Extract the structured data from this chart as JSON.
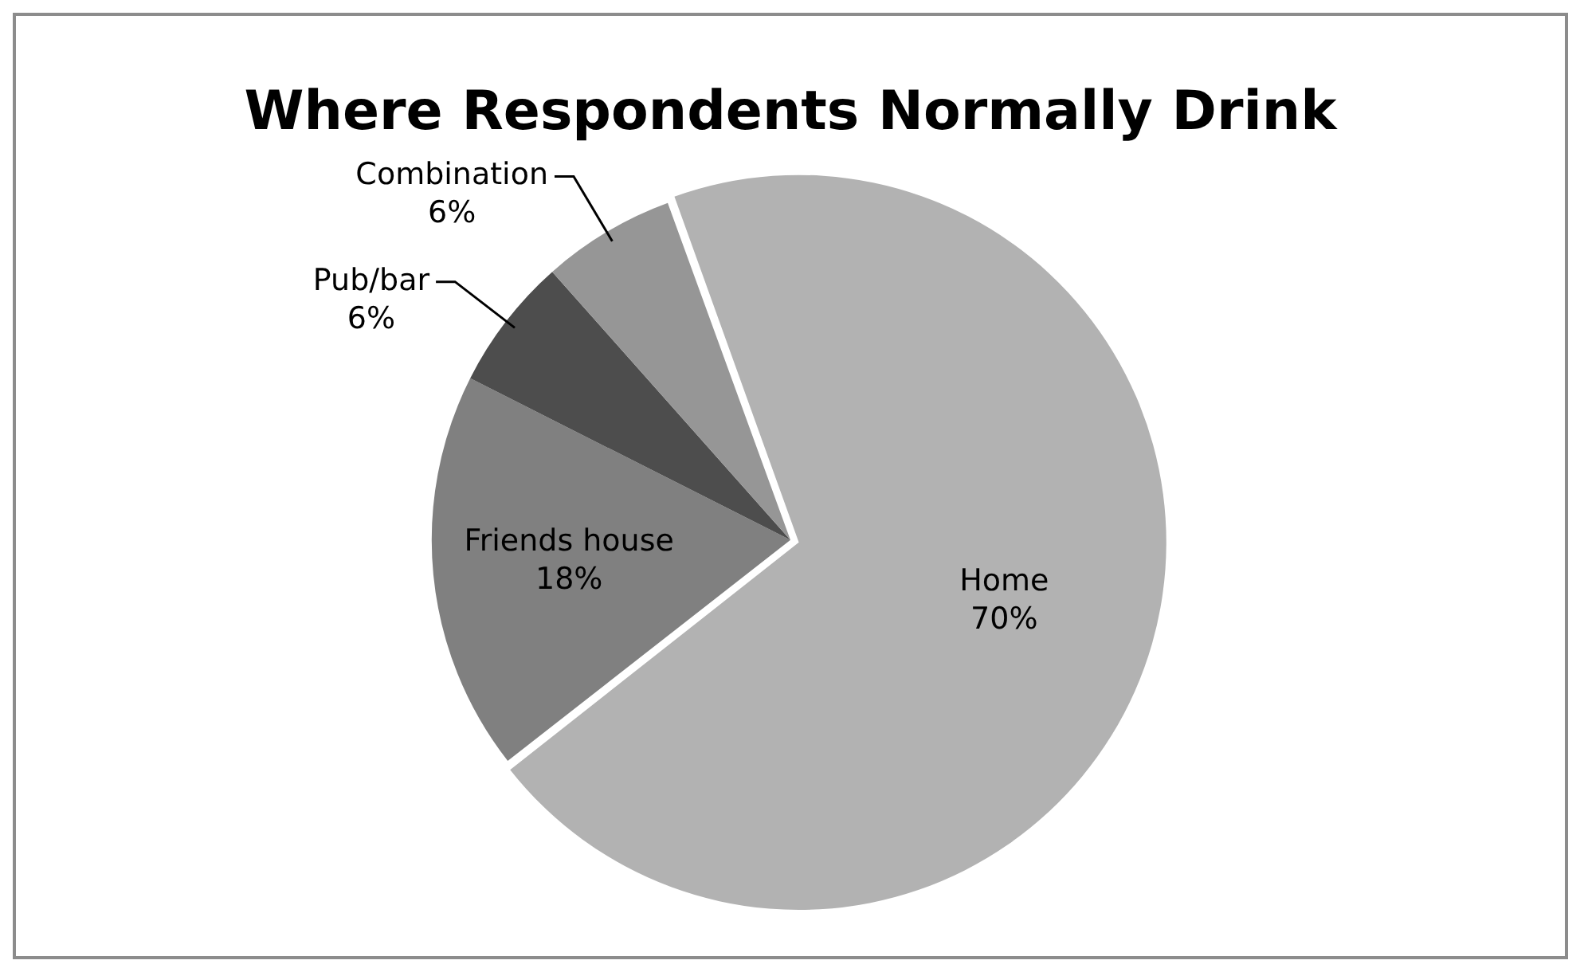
{
  "chart_data": {
    "type": "pie",
    "title": "Where Respondents Normally Drink",
    "categories": [
      "Home",
      "Friends house",
      "Pub/bar",
      "Combination"
    ],
    "values": [
      70,
      18,
      6,
      6
    ],
    "value_labels": [
      "70%",
      "18%",
      "6%",
      "6%"
    ],
    "colors": [
      "#b2b2b2",
      "#808080",
      "#4d4d4d",
      "#969696"
    ]
  }
}
